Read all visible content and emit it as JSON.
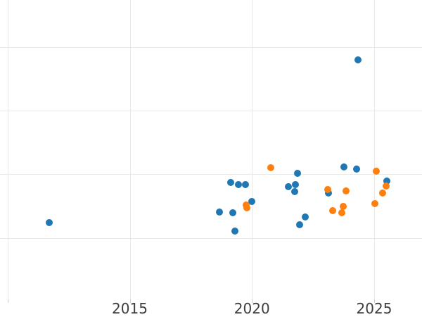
{
  "chart_data": {
    "type": "scatter",
    "title": "",
    "xlabel": "",
    "ylabel": "",
    "grid": true,
    "legend": "none",
    "x_tick_labels": [
      "2015",
      "2020",
      "2025"
    ],
    "x_tick_years": [
      2015,
      2020,
      2025
    ],
    "x_gridline_years": [
      2010,
      2015,
      2020,
      2025
    ],
    "y_tick_labels": [],
    "y_gridline_values": [
      1,
      2,
      3,
      4
    ],
    "xlim": [
      2009.7,
      2027.0
    ],
    "ylim": [
      0.04,
      4.74
    ],
    "series": [
      {
        "name": "series-blue",
        "color": "#1f77b4",
        "points": [
          [
            2011.7,
            1.24
          ],
          [
            2024.35,
            3.8
          ],
          [
            2018.67,
            1.41
          ],
          [
            2019.14,
            1.87
          ],
          [
            2019.21,
            1.39
          ],
          [
            2019.3,
            1.11
          ],
          [
            2019.45,
            1.84
          ],
          [
            2019.74,
            1.84
          ],
          [
            2019.98,
            1.57
          ],
          [
            2021.5,
            1.8
          ],
          [
            2021.76,
            1.73
          ],
          [
            2021.78,
            1.84
          ],
          [
            2021.86,
            2.02
          ],
          [
            2021.95,
            1.21
          ],
          [
            2022.19,
            1.33
          ],
          [
            2023.12,
            1.7
          ],
          [
            2023.77,
            2.12
          ],
          [
            2024.28,
            2.08
          ],
          [
            2025.52,
            1.89
          ]
        ]
      },
      {
        "name": "series-orange",
        "color": "#ff7f0e",
        "points": [
          [
            2019.76,
            1.52
          ],
          [
            2019.78,
            1.47
          ],
          [
            2020.76,
            2.1
          ],
          [
            2023.09,
            1.76
          ],
          [
            2023.3,
            1.43
          ],
          [
            2023.68,
            1.4
          ],
          [
            2023.73,
            1.5
          ],
          [
            2023.86,
            1.74
          ],
          [
            2025.04,
            1.54
          ],
          [
            2025.1,
            2.05
          ],
          [
            2025.34,
            1.71
          ],
          [
            2025.48,
            1.82
          ]
        ]
      }
    ]
  }
}
